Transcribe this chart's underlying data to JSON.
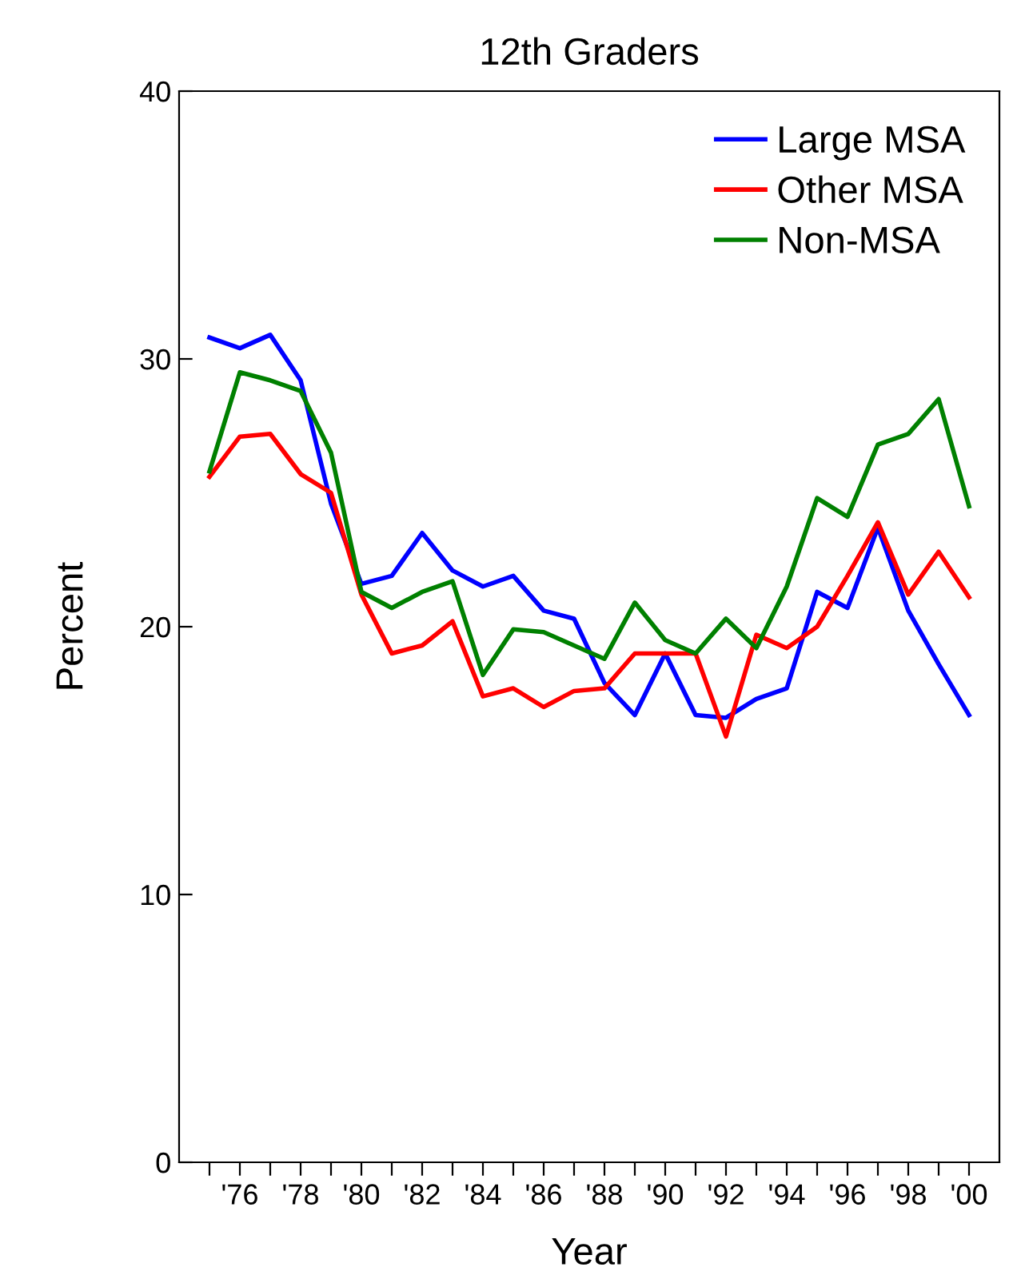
{
  "chart_data": {
    "type": "line",
    "title": "12th Graders",
    "xlabel": "Year",
    "ylabel": "Percent",
    "x": [
      1975,
      1976,
      1977,
      1978,
      1979,
      1980,
      1981,
      1982,
      1983,
      1984,
      1985,
      1986,
      1987,
      1988,
      1989,
      1990,
      1991,
      1992,
      1993,
      1994,
      1995,
      1996,
      1997,
      1998,
      1999,
      2000
    ],
    "series": [
      {
        "name": "Large MSA",
        "color": "#0000ff",
        "values": [
          30.8,
          30.4,
          30.9,
          29.2,
          24.6,
          21.6,
          21.9,
          23.5,
          22.1,
          21.5,
          21.9,
          20.6,
          20.3,
          17.9,
          16.7,
          19.0,
          16.7,
          16.6,
          17.3,
          17.7,
          21.3,
          20.7,
          23.7,
          20.6,
          18.6,
          16.7
        ]
      },
      {
        "name": "Other MSA",
        "color": "#ff0000",
        "values": [
          25.6,
          27.1,
          27.2,
          25.7,
          25.0,
          21.2,
          19.0,
          19.3,
          20.2,
          17.4,
          17.7,
          17.0,
          17.6,
          17.7,
          19.0,
          19.0,
          19.0,
          15.9,
          19.7,
          19.2,
          20.0,
          21.9,
          23.9,
          21.2,
          22.8,
          21.1
        ]
      },
      {
        "name": "Non-MSA",
        "color": "#008000",
        "values": [
          25.8,
          29.5,
          29.2,
          28.8,
          26.5,
          21.3,
          20.7,
          21.3,
          21.7,
          18.2,
          19.9,
          19.8,
          19.3,
          18.8,
          20.9,
          19.5,
          19.0,
          20.3,
          19.2,
          21.5,
          24.8,
          24.1,
          26.8,
          27.2,
          28.5,
          24.5
        ]
      }
    ],
    "xlim": [
      1974,
      2001
    ],
    "xticks": [
      {
        "value": 1975,
        "label": null
      },
      {
        "value": 1976,
        "label": "'76"
      },
      {
        "value": 1977,
        "label": null
      },
      {
        "value": 1978,
        "label": "'78"
      },
      {
        "value": 1979,
        "label": null
      },
      {
        "value": 1980,
        "label": "'80"
      },
      {
        "value": 1981,
        "label": null
      },
      {
        "value": 1982,
        "label": "'82"
      },
      {
        "value": 1983,
        "label": null
      },
      {
        "value": 1984,
        "label": "'84"
      },
      {
        "value": 1985,
        "label": null
      },
      {
        "value": 1986,
        "label": "'86"
      },
      {
        "value": 1987,
        "label": null
      },
      {
        "value": 1988,
        "label": "'88"
      },
      {
        "value": 1989,
        "label": null
      },
      {
        "value": 1990,
        "label": "'90"
      },
      {
        "value": 1991,
        "label": null
      },
      {
        "value": 1992,
        "label": "'92"
      },
      {
        "value": 1993,
        "label": null
      },
      {
        "value": 1994,
        "label": "'94"
      },
      {
        "value": 1995,
        "label": null
      },
      {
        "value": 1996,
        "label": "'96"
      },
      {
        "value": 1997,
        "label": null
      },
      {
        "value": 1998,
        "label": "'98"
      },
      {
        "value": 1999,
        "label": null
      },
      {
        "value": 2000,
        "label": "'00"
      }
    ],
    "ylim": [
      0,
      40
    ],
    "yticks": [
      0,
      10,
      20,
      30,
      40
    ],
    "grid": false,
    "legend": "top right",
    "marker": "none",
    "line_style": "solid"
  }
}
